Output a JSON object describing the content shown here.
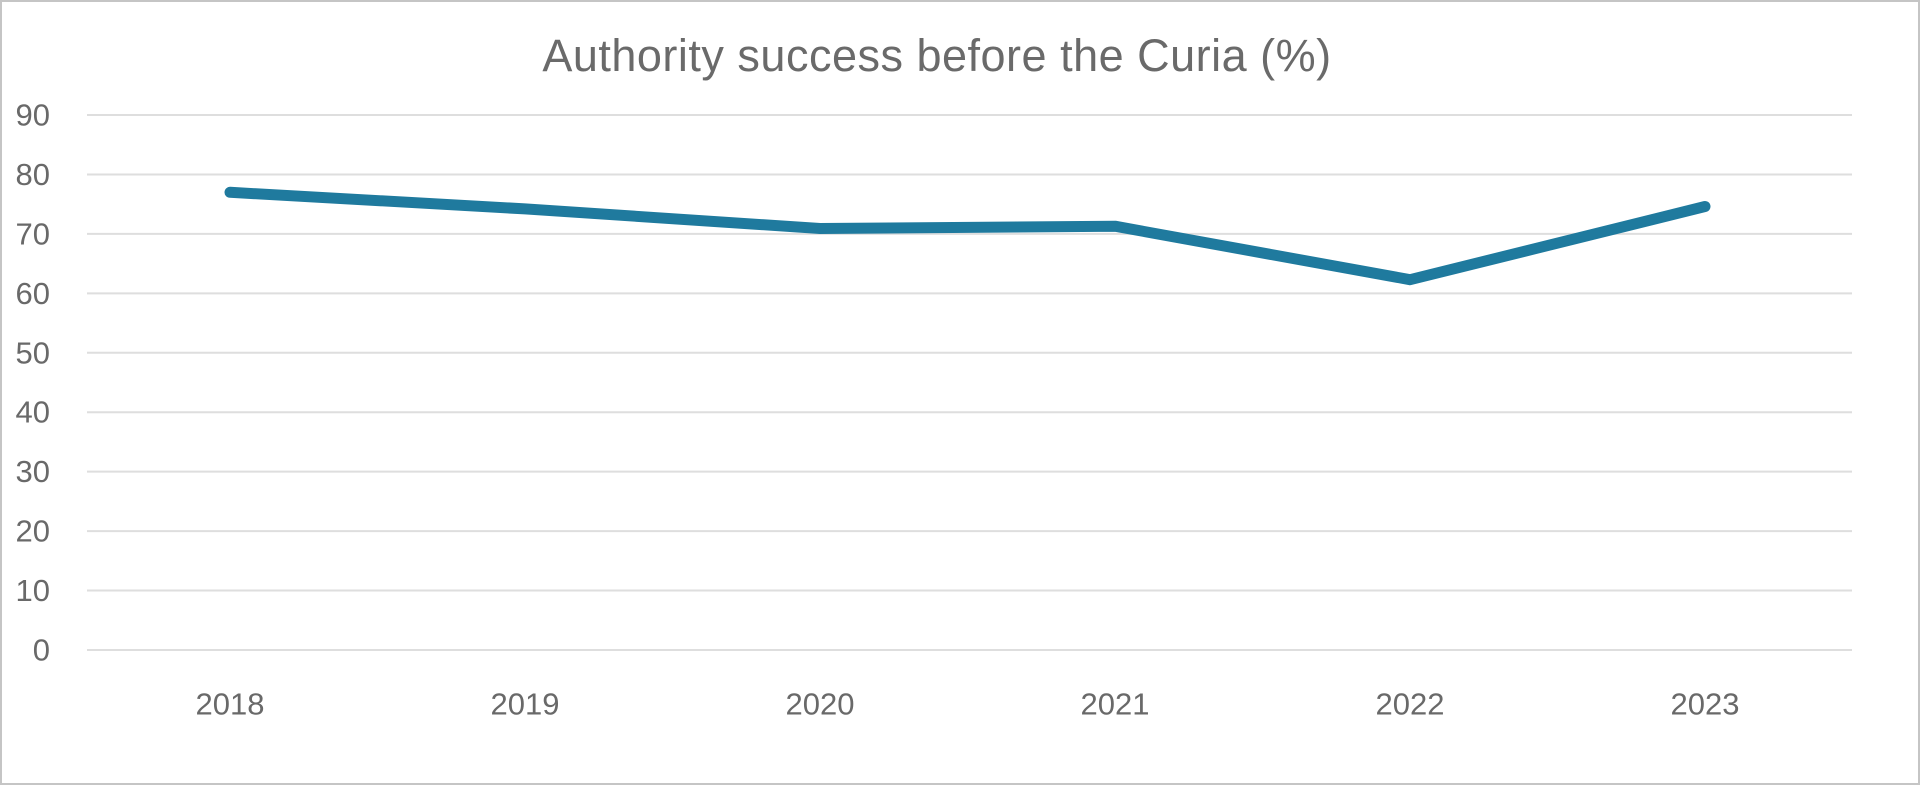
{
  "chart_data": {
    "type": "line",
    "title": "Authority success before the Curia (%)",
    "categories": [
      "2018",
      "2019",
      "2020",
      "2021",
      "2022",
      "2023"
    ],
    "series": [
      {
        "name": "Authority success before the Curia (%)",
        "values": [
          77,
          74.2,
          70.9,
          71.3,
          62.3,
          74.6
        ]
      }
    ],
    "xlabel": "",
    "ylabel": "",
    "ylim": [
      0,
      90
    ],
    "yticks": [
      0,
      10,
      20,
      30,
      40,
      50,
      60,
      70,
      80,
      90
    ],
    "grid": "horizontal-only",
    "legend": "none",
    "line_color": "#1f7a9e",
    "title_color": "#6a6a6a",
    "tick_label_color": "#696969",
    "gridline_color": "#dedede"
  }
}
